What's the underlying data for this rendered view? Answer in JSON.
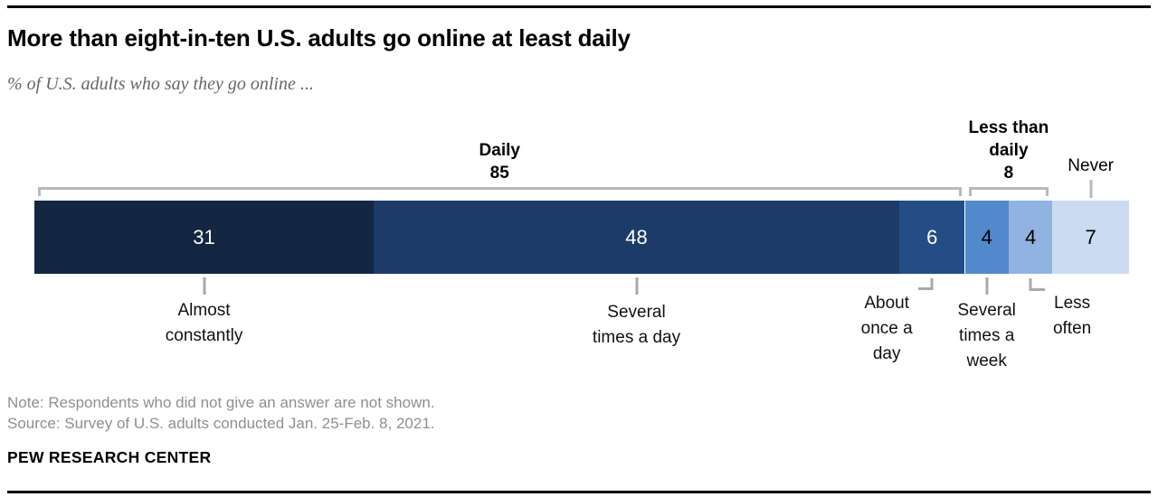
{
  "chart_data": {
    "type": "bar",
    "orientation": "horizontal-stacked",
    "title": "More than eight-in-ten U.S. adults go online at least daily",
    "subtitle": "% of U.S. adults who say they go online ...",
    "total": 100,
    "values_shown_on_bars": true,
    "axes_shown": false,
    "segments": [
      {
        "label": "Almost constantly",
        "label_lines": [
          "Almost",
          "constantly"
        ],
        "value": 31,
        "color": "#132743",
        "value_text_color": "#ffffff"
      },
      {
        "label": "Several times a day",
        "label_lines": [
          "Several",
          "times a day"
        ],
        "value": 48,
        "color": "#1c3b68",
        "value_text_color": "#ffffff"
      },
      {
        "label": "About once a day",
        "label_lines": [
          "About",
          "once a",
          "day"
        ],
        "value": 6,
        "color": "#244d85",
        "value_text_color": "#ffffff"
      },
      {
        "label": "Several times a week",
        "label_lines": [
          "Several",
          "times a",
          "week"
        ],
        "value": 4,
        "color": "#5289cd",
        "value_text_color": "#000000"
      },
      {
        "label": "Less often",
        "label_lines": [
          "Less",
          "often"
        ],
        "value": 4,
        "color": "#91b3e1",
        "value_text_color": "#000000"
      },
      {
        "label": "Never",
        "label_lines": [],
        "value": 7,
        "color": "#cbdcf2",
        "value_text_color": "#000000"
      }
    ],
    "groups": [
      {
        "label": "Daily",
        "label_lines": [
          "Daily"
        ],
        "value": 85,
        "seg_from": 0,
        "seg_to": 2,
        "bracket": true,
        "bold": true
      },
      {
        "label": "Less than daily",
        "label_lines": [
          "Less than",
          "daily"
        ],
        "value": 8,
        "seg_from": 3,
        "seg_to": 4,
        "bracket": true,
        "bold": true
      },
      {
        "label": "Never",
        "label_lines": [
          "Never"
        ],
        "value": null,
        "seg_from": 5,
        "seg_to": 5,
        "bracket": false,
        "bold": false
      }
    ],
    "colors": {
      "bracket_gray": "#b9b9b9",
      "tick_gray": "#a9a9a9"
    }
  },
  "footer": {
    "note": "Note: Respondents who did not give an answer are not shown.",
    "source": "Source: Survey of U.S. adults conducted Jan. 25-Feb. 8, 2021.",
    "brand": "PEW RESEARCH CENTER"
  }
}
